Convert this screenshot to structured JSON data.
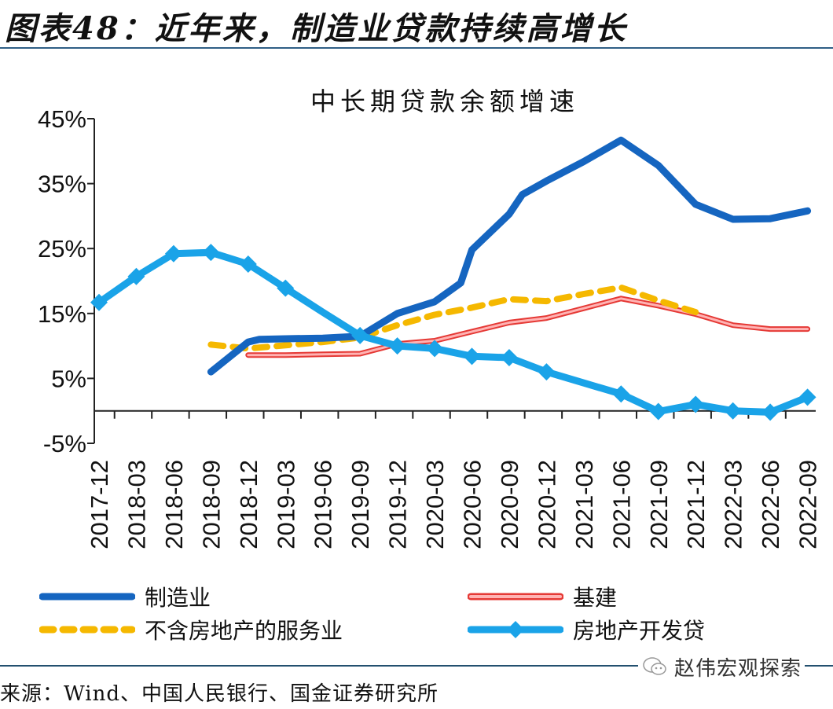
{
  "figure_title": "图表48：近年来，制造业贷款持续高增长",
  "source": "来源：Wind、中国人民银行、国金证券研究所",
  "watermark": {
    "icon": "wechat-icon",
    "text": "赵伟宏观探索"
  },
  "chart_data": {
    "type": "line",
    "title": "中长期贷款余额增速",
    "xlabel": "",
    "ylabel": "",
    "ylim": [
      -5,
      45
    ],
    "yticks": [
      -5,
      5,
      15,
      25,
      35,
      45
    ],
    "ytick_labels": [
      "-5%",
      "5%",
      "15%",
      "25%",
      "35%",
      "45%"
    ],
    "grid": false,
    "legend_position": "bottom",
    "categories": [
      "2017-12",
      "2018-03",
      "2018-06",
      "2018-09",
      "2018-12",
      "2019-03",
      "2019-06",
      "2019-09",
      "2019-12",
      "2020-03",
      "2020-06",
      "2020-09",
      "2020-12",
      "2021-03",
      "2021-06",
      "2021-09",
      "2021-12",
      "2022-03",
      "2022-06",
      "2022-09"
    ],
    "series": [
      {
        "name": "制造业",
        "color": "#1565c0",
        "style": "solid",
        "points": [
          [
            3,
            6.0
          ],
          [
            4,
            10.6
          ],
          [
            4.3,
            11.0
          ],
          [
            5,
            11.1
          ],
          [
            6,
            11.2
          ],
          [
            7,
            11.5
          ],
          [
            8,
            15.0
          ],
          [
            9,
            16.8
          ],
          [
            9.7,
            19.7
          ],
          [
            10,
            24.8
          ],
          [
            11,
            30.3
          ],
          [
            11.35,
            33.3
          ],
          [
            12,
            35.4
          ],
          [
            13,
            38.4
          ],
          [
            14,
            41.7
          ],
          [
            15,
            37.8
          ],
          [
            16,
            31.8
          ],
          [
            17,
            29.5
          ],
          [
            18,
            29.6
          ],
          [
            19,
            30.8
          ]
        ]
      },
      {
        "name": "基建",
        "color": "#e53935",
        "fill": "#ffb3b3",
        "style": "double",
        "points": [
          [
            4,
            8.6
          ],
          [
            5,
            8.6
          ],
          [
            6,
            8.7
          ],
          [
            7,
            8.8
          ],
          [
            8,
            10.3
          ],
          [
            9,
            10.8
          ],
          [
            10,
            12.2
          ],
          [
            11,
            13.6
          ],
          [
            12,
            14.3
          ],
          [
            13,
            15.8
          ],
          [
            14,
            17.3
          ],
          [
            15,
            16.2
          ],
          [
            16,
            14.9
          ],
          [
            17,
            13.2
          ],
          [
            18,
            12.6
          ],
          [
            19,
            12.6
          ]
        ]
      },
      {
        "name": "不含房地产的服务业",
        "color": "#f5b800",
        "style": "dashed",
        "points": [
          [
            3,
            10.2
          ],
          [
            4,
            9.6
          ],
          [
            5,
            10.1
          ],
          [
            6,
            10.6
          ],
          [
            7,
            11.3
          ],
          [
            8,
            13.2
          ],
          [
            9,
            14.8
          ],
          [
            10,
            15.9
          ],
          [
            11,
            17.2
          ],
          [
            12,
            16.9
          ],
          [
            13,
            18.0
          ],
          [
            14,
            19.0
          ],
          [
            15,
            17.0
          ],
          [
            16,
            15.2
          ]
        ]
      },
      {
        "name": "房地产开发贷",
        "color": "#1aa3e8",
        "style": "solid-marker",
        "points": [
          [
            0,
            16.7
          ],
          [
            1,
            20.7
          ],
          [
            2,
            24.2
          ],
          [
            3,
            24.4
          ],
          [
            4,
            22.6
          ],
          [
            5,
            18.9
          ],
          [
            6,
            15.2
          ],
          [
            7,
            11.6
          ],
          [
            8,
            10.0
          ],
          [
            9,
            9.6
          ],
          [
            10,
            8.4
          ],
          [
            11,
            8.2
          ],
          [
            12,
            6.0
          ],
          [
            13,
            4.3
          ],
          [
            14,
            2.6
          ],
          [
            15,
            -0.1
          ],
          [
            16,
            1.0
          ],
          [
            17,
            0.0
          ],
          [
            18,
            -0.2
          ],
          [
            19,
            2.1
          ]
        ],
        "markers_at": [
          0,
          1,
          2,
          3,
          4,
          5,
          7,
          8,
          9,
          10,
          11,
          12,
          14,
          15,
          16,
          17,
          18,
          19
        ]
      }
    ]
  }
}
